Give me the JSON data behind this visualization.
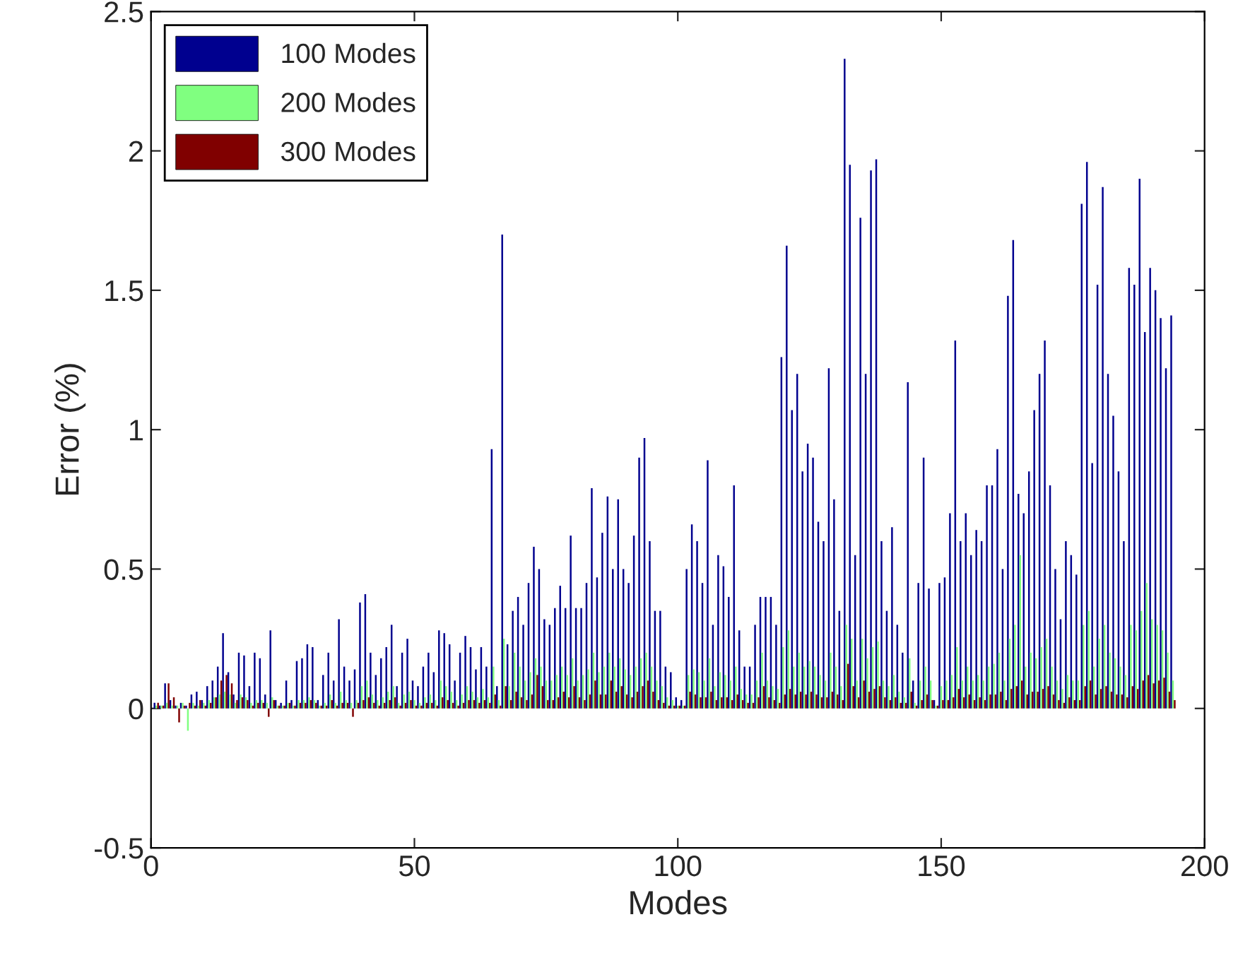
{
  "chart_data": {
    "type": "bar",
    "xlabel": "Modes",
    "ylabel": "Error (%)",
    "x": [
      1,
      2,
      3,
      4,
      5,
      6,
      7,
      8,
      9,
      10,
      11,
      12,
      13,
      14,
      15,
      16,
      17,
      18,
      19,
      20,
      21,
      22,
      23,
      24,
      25,
      26,
      27,
      28,
      29,
      30,
      31,
      32,
      33,
      34,
      35,
      36,
      37,
      38,
      39,
      40,
      41,
      42,
      43,
      44,
      45,
      46,
      47,
      48,
      49,
      50,
      51,
      52,
      53,
      54,
      55,
      56,
      57,
      58,
      59,
      60,
      61,
      62,
      63,
      64,
      65,
      66,
      67,
      68,
      69,
      70,
      71,
      72,
      73,
      74,
      75,
      76,
      77,
      78,
      79,
      80,
      81,
      82,
      83,
      84,
      85,
      86,
      87,
      88,
      89,
      90,
      91,
      92,
      93,
      94,
      95,
      96,
      97,
      98,
      99,
      100,
      101,
      102,
      103,
      104,
      105,
      106,
      107,
      108,
      109,
      110,
      111,
      112,
      113,
      114,
      115,
      116,
      117,
      118,
      119,
      120,
      121,
      122,
      123,
      124,
      125,
      126,
      127,
      128,
      129,
      130,
      131,
      132,
      133,
      134,
      135,
      136,
      137,
      138,
      139,
      140,
      141,
      142,
      143,
      144,
      145,
      146,
      147,
      148,
      149,
      150,
      151,
      152,
      153,
      154,
      155,
      156,
      157,
      158,
      159,
      160,
      161,
      162,
      163,
      164,
      165,
      166,
      167,
      168,
      169,
      170,
      171,
      172,
      173,
      174,
      175,
      176,
      177,
      178,
      179,
      180,
      181,
      182,
      183,
      184,
      185,
      186,
      187,
      188,
      189,
      190,
      191,
      192,
      193,
      194
    ],
    "series": [
      {
        "name": "100 Modes",
        "color": "#00008f",
        "values": [
          0.02,
          0.01,
          0.09,
          0.03,
          0.01,
          0.02,
          0.01,
          0.05,
          0.06,
          0.03,
          0.08,
          0.1,
          0.15,
          0.27,
          0.13,
          0.05,
          0.2,
          0.19,
          0.08,
          0.2,
          0.18,
          0.05,
          0.28,
          0.03,
          0.02,
          0.1,
          0.03,
          0.17,
          0.18,
          0.23,
          0.22,
          0.03,
          0.12,
          0.2,
          0.1,
          0.32,
          0.15,
          0.1,
          0.14,
          0.38,
          0.41,
          0.2,
          0.12,
          0.18,
          0.22,
          0.3,
          0.08,
          0.2,
          0.25,
          0.1,
          0.08,
          0.15,
          0.2,
          0.13,
          0.28,
          0.27,
          0.23,
          0.1,
          0.2,
          0.26,
          0.22,
          0.14,
          0.22,
          0.15,
          0.93,
          0.08,
          1.7,
          0.23,
          0.35,
          0.4,
          0.3,
          0.45,
          0.58,
          0.5,
          0.32,
          0.3,
          0.36,
          0.44,
          0.36,
          0.62,
          0.36,
          0.36,
          0.45,
          0.79,
          0.47,
          0.63,
          0.76,
          0.5,
          0.75,
          0.5,
          0.45,
          0.62,
          0.9,
          0.97,
          0.6,
          0.35,
          0.35,
          0.15,
          0.13,
          0.04,
          0.03,
          0.5,
          0.66,
          0.6,
          0.45,
          0.89,
          0.3,
          0.55,
          0.51,
          0.4,
          0.8,
          0.28,
          0.15,
          0.15,
          0.3,
          0.4,
          0.4,
          0.4,
          0.3,
          1.26,
          1.66,
          1.07,
          1.2,
          0.85,
          0.95,
          0.9,
          0.67,
          0.6,
          1.22,
          0.75,
          0.35,
          2.33,
          1.95,
          0.55,
          1.76,
          1.2,
          1.93,
          1.97,
          0.6,
          0.35,
          0.65,
          0.3,
          0.2,
          1.17,
          0.1,
          0.45,
          0.9,
          0.43,
          0.03,
          0.45,
          0.47,
          0.7,
          1.32,
          0.6,
          0.7,
          0.55,
          0.64,
          0.6,
          0.8,
          0.8,
          0.93,
          0.5,
          1.48,
          1.68,
          0.77,
          0.7,
          0.85,
          1.07,
          1.2,
          1.32,
          0.8,
          0.5,
          0.32,
          0.6,
          0.55,
          0.48,
          1.81,
          1.96,
          0.88,
          1.52,
          1.87,
          1.2,
          1.05,
          0.85,
          0.6,
          1.58,
          1.52,
          1.9,
          1.35,
          1.58,
          1.5,
          1.4,
          1.22,
          1.41
        ]
      },
      {
        "name": "200 Modes",
        "color": "#80ff80",
        "values": [
          0.01,
          0.01,
          0.02,
          0.01,
          0.01,
          0.02,
          -0.08,
          0.02,
          0.01,
          0.02,
          0.03,
          0.04,
          0.05,
          0.06,
          0.05,
          0.02,
          0.05,
          0.04,
          0.02,
          0.03,
          0.03,
          0.02,
          0.04,
          0.01,
          0.01,
          0.02,
          0.01,
          0.03,
          0.03,
          0.04,
          0.03,
          0.01,
          0.02,
          0.05,
          0.02,
          0.06,
          0.03,
          0.02,
          0.03,
          0.08,
          0.1,
          0.05,
          0.03,
          0.04,
          0.06,
          0.08,
          0.02,
          0.05,
          0.06,
          0.03,
          0.02,
          0.04,
          0.05,
          0.03,
          0.1,
          0.08,
          0.06,
          0.03,
          0.05,
          0.08,
          0.06,
          0.04,
          0.07,
          0.04,
          0.15,
          0.03,
          0.25,
          0.08,
          0.2,
          0.15,
          0.1,
          0.13,
          0.18,
          0.15,
          0.1,
          0.1,
          0.12,
          0.15,
          0.12,
          0.18,
          0.1,
          0.12,
          0.14,
          0.2,
          0.13,
          0.15,
          0.2,
          0.15,
          0.18,
          0.14,
          0.12,
          0.15,
          0.18,
          0.2,
          0.15,
          0.1,
          0.08,
          0.04,
          0.03,
          0.01,
          0.01,
          0.12,
          0.14,
          0.13,
          0.1,
          0.18,
          0.08,
          0.13,
          0.12,
          0.1,
          0.15,
          0.07,
          0.05,
          0.05,
          0.1,
          0.2,
          0.1,
          0.08,
          0.07,
          0.22,
          0.28,
          0.15,
          0.2,
          0.15,
          0.17,
          0.15,
          0.12,
          0.1,
          0.2,
          0.15,
          0.08,
          0.3,
          0.25,
          0.1,
          0.25,
          0.18,
          0.22,
          0.24,
          0.1,
          0.08,
          0.12,
          0.06,
          0.04,
          0.18,
          0.02,
          0.1,
          0.15,
          0.1,
          0.01,
          0.08,
          0.1,
          0.12,
          0.22,
          0.1,
          0.15,
          0.1,
          0.12,
          0.1,
          0.15,
          0.16,
          0.2,
          0.1,
          0.25,
          0.3,
          0.55,
          0.15,
          0.2,
          0.18,
          0.22,
          0.25,
          0.15,
          0.1,
          0.07,
          0.12,
          0.1,
          0.1,
          0.3,
          0.35,
          0.15,
          0.25,
          0.3,
          0.2,
          0.18,
          0.15,
          0.12,
          0.3,
          0.28,
          0.35,
          0.45,
          0.32,
          0.3,
          0.28,
          0.2,
          0.1
        ]
      },
      {
        "name": "300 Modes",
        "color": "#800000",
        "values": [
          0.02,
          0.01,
          0.09,
          0.04,
          -0.05,
          0.01,
          0.02,
          0.01,
          0.03,
          0.01,
          0.02,
          0.04,
          0.1,
          0.12,
          0.09,
          0.03,
          0.04,
          0.03,
          0.01,
          0.02,
          0.02,
          -0.03,
          0.03,
          0.01,
          0.01,
          0.02,
          0.01,
          0.02,
          0.02,
          0.03,
          0.02,
          0.01,
          0.01,
          0.03,
          0.01,
          0.02,
          0.02,
          -0.03,
          0.02,
          0.03,
          0.04,
          0.02,
          0.01,
          0.02,
          0.03,
          0.04,
          0.01,
          0.02,
          0.03,
          0.01,
          0.01,
          0.02,
          0.02,
          0.01,
          0.04,
          0.03,
          0.02,
          0.01,
          0.02,
          0.03,
          0.03,
          0.02,
          0.03,
          0.02,
          0.05,
          0.01,
          0.08,
          0.03,
          0.06,
          0.04,
          0.03,
          0.05,
          0.12,
          0.08,
          0.03,
          0.03,
          0.04,
          0.06,
          0.04,
          0.08,
          0.04,
          0.03,
          0.05,
          0.1,
          0.05,
          0.05,
          0.1,
          0.06,
          0.08,
          0.05,
          0.04,
          0.06,
          0.08,
          0.1,
          0.06,
          0.03,
          0.02,
          0.01,
          0.01,
          0.01,
          0.01,
          0.06,
          0.05,
          0.04,
          0.04,
          0.06,
          0.03,
          0.04,
          0.04,
          0.03,
          0.05,
          0.03,
          0.02,
          0.02,
          0.04,
          0.08,
          0.04,
          0.03,
          0.02,
          0.05,
          0.07,
          0.05,
          0.06,
          0.05,
          0.06,
          0.05,
          0.04,
          0.04,
          0.06,
          0.05,
          0.03,
          0.16,
          0.08,
          0.04,
          0.1,
          0.06,
          0.07,
          0.08,
          0.04,
          0.03,
          0.04,
          0.02,
          0.02,
          0.06,
          0.01,
          0.03,
          0.05,
          0.03,
          0.01,
          0.03,
          0.03,
          0.04,
          0.07,
          0.04,
          0.05,
          0.03,
          0.04,
          0.03,
          0.05,
          0.05,
          0.06,
          0.03,
          0.07,
          0.08,
          0.1,
          0.05,
          0.06,
          0.06,
          0.07,
          0.08,
          0.05,
          0.03,
          0.02,
          0.04,
          0.03,
          0.03,
          0.08,
          0.1,
          0.05,
          0.07,
          0.08,
          0.06,
          0.05,
          0.05,
          0.04,
          0.08,
          0.07,
          0.1,
          0.12,
          0.09,
          0.1,
          0.11,
          0.06,
          0.03
        ]
      }
    ],
    "xlim": [
      0,
      200
    ],
    "xticks": [
      0,
      50,
      100,
      150,
      200
    ],
    "ylim": [
      -0.5,
      2.5
    ],
    "yticks": [
      -0.5,
      0,
      0.5,
      1,
      1.5,
      2,
      2.5
    ],
    "legend": "top left",
    "grid": false
  }
}
